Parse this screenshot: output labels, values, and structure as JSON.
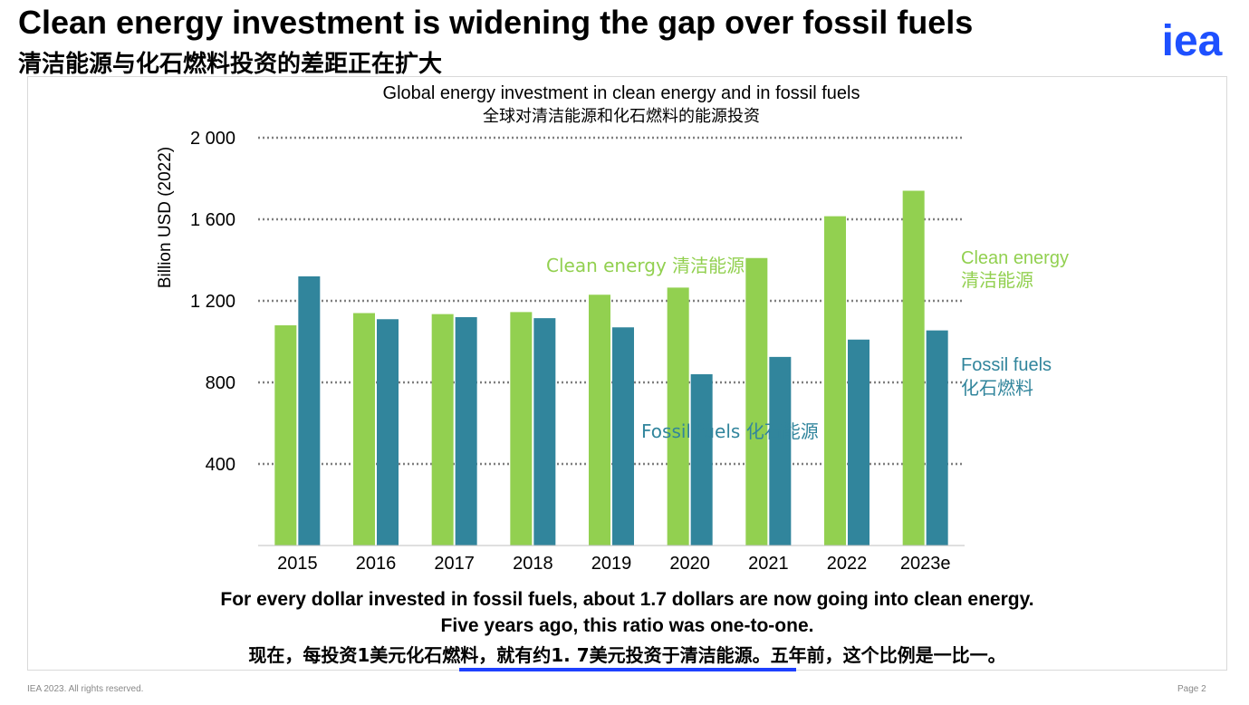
{
  "header": {
    "title_en": "Clean energy investment is widening the gap over fossil fuels",
    "title_zh": "清洁能源与化石燃料投资的差距正在扩大",
    "logo_text": "iea"
  },
  "chart_data": {
    "type": "bar",
    "title": "Global energy investment in clean energy and in fossil fuels",
    "subtitle": "全球对清洁能源和化石燃料的能源投资",
    "ylabel": "Billion USD (2022)",
    "xlabel": "",
    "ylim": [
      0,
      2000
    ],
    "yticks": [
      400,
      800,
      1200,
      1600,
      2000
    ],
    "ytick_labels": [
      "400",
      "800",
      "1 200",
      "1 600",
      "2 000"
    ],
    "grid": "dotted horizontal",
    "categories": [
      "2015",
      "2016",
      "2017",
      "2018",
      "2019",
      "2020",
      "2021",
      "2022",
      "2023e"
    ],
    "series": [
      {
        "name": "Clean energy 清洁能源",
        "color": "#92d050",
        "values": [
          1080,
          1140,
          1135,
          1145,
          1230,
          1265,
          1410,
          1615,
          1740
        ]
      },
      {
        "name": "Fossil fuels 化石能源",
        "color": "#31859c",
        "values": [
          1320,
          1110,
          1120,
          1115,
          1070,
          840,
          925,
          1010,
          1055
        ]
      }
    ],
    "annotations": {
      "clean_inline": "Clean energy 清洁能源",
      "fossil_inline": "Fossil fuels 化石能源",
      "clean_right_en": "Clean energy",
      "clean_right_zh": "清洁能源",
      "fossil_right_en": "Fossil fuels",
      "fossil_right_zh": "化石燃料"
    }
  },
  "caption": {
    "line1": "For every dollar invested in fossil fuels, about 1.7 dollars are now going into clean energy.",
    "line2": "Five years ago, this ratio was one-to-one.",
    "line3": "现在，每投资1美元化石燃料，就有约1. 7美元投资于清洁能源。五年前，这个比例是一比一。"
  },
  "footer": {
    "copyright": "IEA 2023. All rights reserved.",
    "page": "Page 2"
  },
  "colors": {
    "clean": "#92d050",
    "fossil": "#31859c",
    "accent": "#1e40ff",
    "logo": "#1e50ff"
  }
}
